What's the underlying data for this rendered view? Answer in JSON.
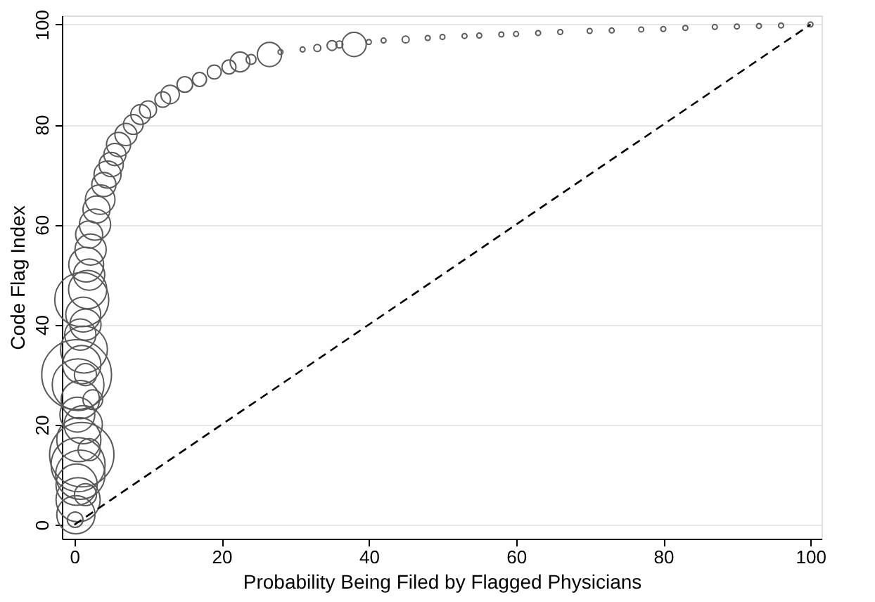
{
  "chart_data": {
    "type": "bubble",
    "xlabel": "Probability Being Filed by Flagged Physicians",
    "ylabel": "Code Flag Index",
    "xlim": [
      -1.7,
      101.5
    ],
    "ylim": [
      -2.8,
      101.8
    ],
    "xticks": [
      0,
      20,
      40,
      60,
      80,
      100
    ],
    "yticks": [
      0,
      20,
      40,
      60,
      80,
      100
    ],
    "grid": "y",
    "series": [
      {
        "type": "bubble",
        "color": "#5a5a5a",
        "marker": "circle",
        "x": [
          0.1,
          0.2,
          0.5,
          1.5,
          0.3,
          0.8,
          0.5,
          1.0,
          2.0,
          0.6,
          1.2,
          0.4,
          2.5,
          0.8,
          0.5,
          0.3,
          1.5,
          1.0,
          1.3,
          0.8,
          1.5,
          1.2,
          1.0,
          1.8,
          2.0,
          1.6,
          2.2,
          2.0,
          2.8,
          3.0,
          3.5,
          4.0,
          4.5,
          5.0,
          5.5,
          6.0,
          7.0,
          8.0,
          9,
          10,
          12,
          13,
          15,
          17,
          19,
          21,
          22.5,
          24,
          26.5,
          28,
          31,
          33,
          35,
          36,
          38,
          40,
          42,
          45,
          48,
          50,
          53,
          55,
          58,
          60,
          63,
          66,
          70,
          73,
          77,
          80,
          83,
          87,
          90,
          93,
          96,
          100
        ],
        "values": [
          1,
          2,
          5,
          6,
          8,
          10,
          12,
          14,
          15,
          17,
          20,
          22,
          25,
          25,
          28,
          30,
          30,
          32,
          35,
          38,
          40,
          42,
          45,
          47,
          50,
          52,
          55,
          58,
          60,
          63,
          65,
          68,
          70,
          72,
          74,
          76,
          78,
          80,
          82,
          83,
          85,
          86,
          88,
          89,
          90.5,
          91.5,
          92.5,
          93,
          94,
          94.5,
          95,
          95.3,
          95.8,
          96,
          96,
          96.5,
          96.8,
          97,
          97.3,
          97.5,
          97.7,
          97.8,
          98,
          98.1,
          98.3,
          98.5,
          98.7,
          98.8,
          99,
          99.1,
          99.3,
          99.5,
          99.6,
          99.7,
          99.8,
          100
        ],
        "sizes": [
          0.05,
          0.3,
          0.4,
          0.1,
          0.35,
          0.5,
          0.6,
          0.85,
          0.1,
          0.4,
          0.3,
          0.25,
          0.08,
          0.3,
          0.55,
          1.0,
          0.1,
          0.3,
          0.45,
          0.2,
          0.2,
          0.25,
          0.6,
          0.3,
          0.2,
          0.25,
          0.2,
          0.15,
          0.2,
          0.15,
          0.18,
          0.12,
          0.15,
          0.12,
          0.1,
          0.12,
          0.1,
          0.08,
          0.08,
          0.06,
          0.05,
          0.07,
          0.05,
          0.04,
          0.04,
          0.04,
          0.08,
          0.02,
          0.12,
          0.005,
          0.005,
          0.01,
          0.02,
          0.01,
          0.12,
          0.005,
          0.005,
          0.01,
          0.005,
          0.005,
          0.005,
          0.005,
          0.005,
          0.005,
          0.005,
          0.005,
          0.005,
          0.005,
          0.005,
          0.005,
          0.005,
          0.005,
          0.005,
          0.005,
          0.005,
          0.005
        ]
      },
      {
        "type": "line",
        "color": "#000000",
        "line_style": "dashed",
        "marker": "none",
        "x": [
          0,
          100
        ],
        "values": [
          0,
          100
        ]
      }
    ]
  }
}
